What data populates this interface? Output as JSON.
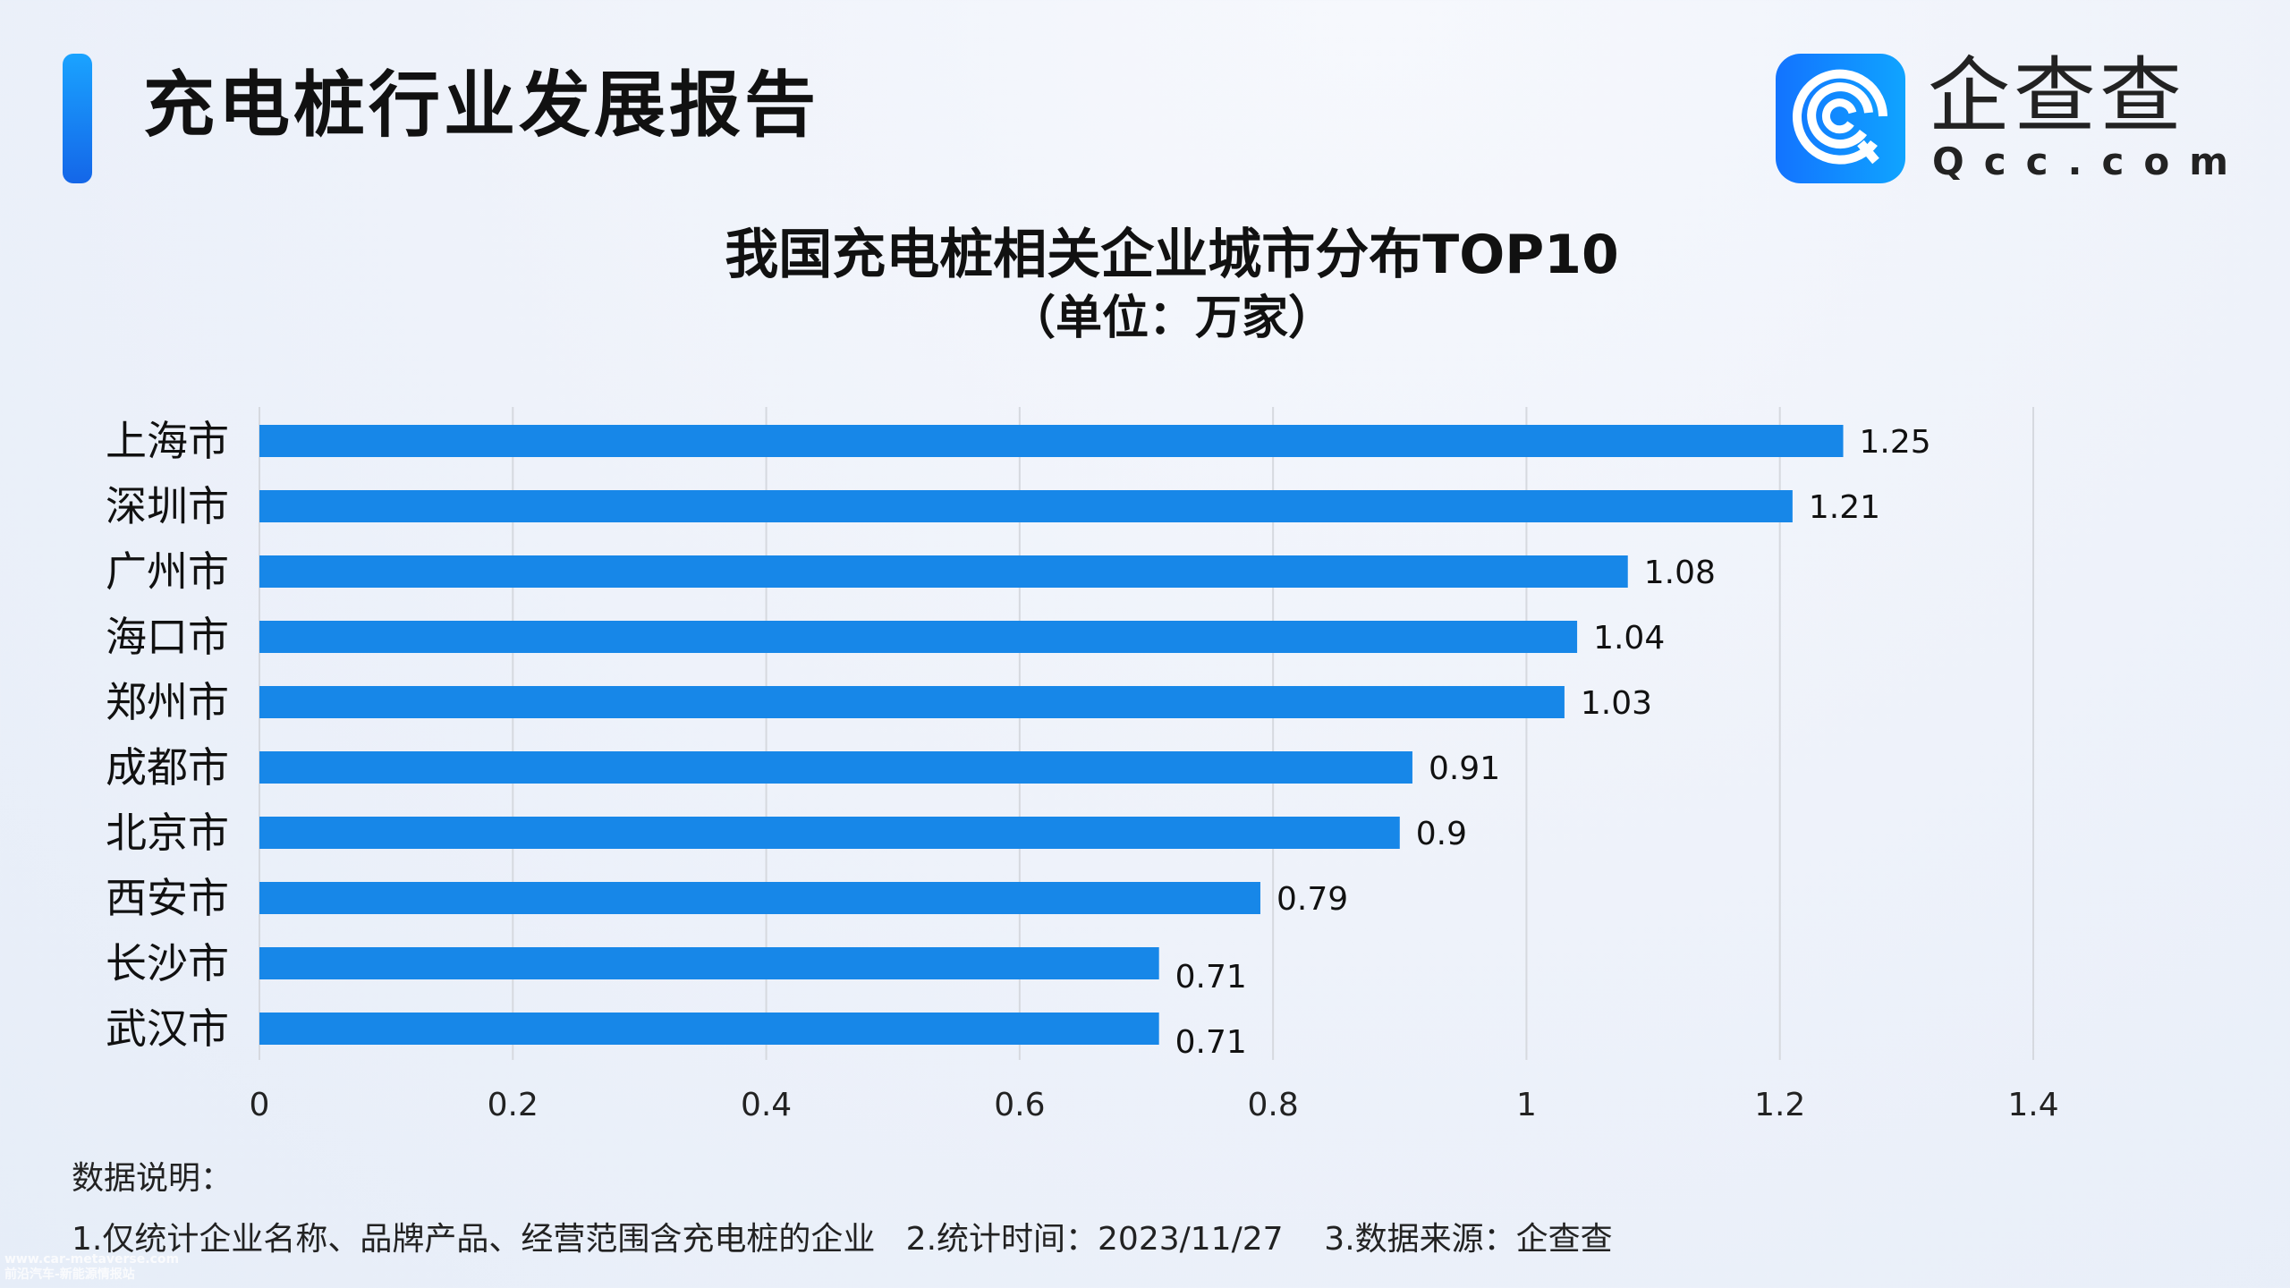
{
  "header": {
    "title": "充电桩行业发展报告"
  },
  "logo": {
    "cn": "企查查",
    "en": "Qcc.com",
    "color": "#1488f5"
  },
  "chart_data": {
    "type": "bar",
    "orientation": "horizontal",
    "title": "我国充电桩相关企业城市分布TOP10",
    "subtitle": "（单位：万家）",
    "categories": [
      "上海市",
      "深圳市",
      "广州市",
      "海口市",
      "郑州市",
      "成都市",
      "北京市",
      "西安市",
      "长沙市",
      "武汉市"
    ],
    "values": [
      1.25,
      1.21,
      1.08,
      1.04,
      1.03,
      0.91,
      0.9,
      0.79,
      0.71,
      0.71
    ],
    "value_labels": [
      "1.25",
      "1.21",
      "1.08",
      "1.04",
      "1.03",
      "0.91",
      "0.9",
      "0.79",
      "0.71",
      "0.71"
    ],
    "xlim": [
      0,
      1.4
    ],
    "xticks": [
      "0",
      "0.2",
      "0.4",
      "0.6",
      "0.8",
      "1",
      "1.2",
      "1.4"
    ],
    "grid": true,
    "bar_color": "#1787e8"
  },
  "notes": {
    "heading": "数据说明：",
    "line": "1.仅统计企业名称、品牌产品、经营范围含充电桩的企业   2.统计时间：2023/11/27    3.数据来源：企查查"
  },
  "watermark": {
    "line1": "www.car-metaverse.com",
    "line2": "前沿汽车-新能源情报站"
  }
}
